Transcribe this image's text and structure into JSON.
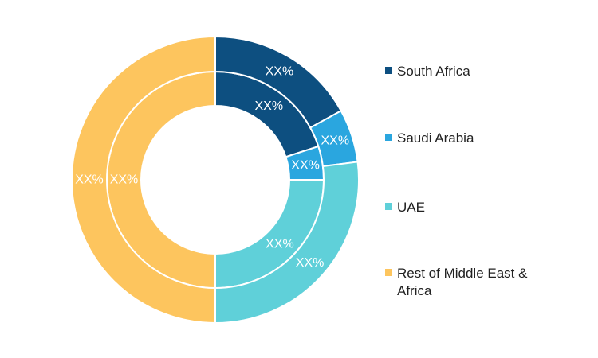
{
  "chart_data": {
    "type": "pie",
    "variant": "nested-donut",
    "categories": [
      "South Africa",
      "Saudi Arabia",
      "UAE",
      "Rest of Middle East & Africa"
    ],
    "colors": [
      "#0d4f80",
      "#2aa6df",
      "#5fd0d9",
      "#fdc55e"
    ],
    "series": [
      {
        "ring": "inner",
        "values": [
          20,
          5,
          25,
          50
        ],
        "labels": [
          "XX%",
          "XX%",
          "XX%",
          "XX%"
        ]
      },
      {
        "ring": "outer",
        "values": [
          17,
          6,
          27,
          50
        ],
        "labels": [
          "XX%",
          "XX%",
          "XX%",
          "XX%"
        ]
      }
    ],
    "legend": {
      "position": "right",
      "items": [
        {
          "label": "South Africa",
          "color": "#0d4f80"
        },
        {
          "label": "Saudi Arabia",
          "color": "#2aa6df"
        },
        {
          "label": "UAE",
          "color": "#5fd0d9"
        },
        {
          "label": "Rest of Middle East & Africa",
          "color": "#fdc55e"
        }
      ]
    }
  }
}
